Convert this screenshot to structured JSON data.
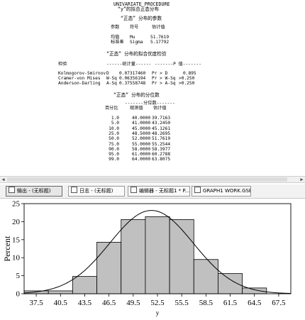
{
  "output": {
    "header_lines": [
      "UNIVARIATE PROCEDURE",
      "“y”的拟合正态分布"
    ],
    "param_section": {
      "title": "“正态” 分布的参数",
      "headers": [
        "参数",
        "符号",
        "估计值"
      ],
      "rows": [
        [
          "均值",
          "Mu",
          "51.7619"
        ],
        [
          "标准差",
          "Sigma",
          "5.17792"
        ]
      ]
    },
    "gof_section": {
      "title": "“正态” 分布的拟合优度检验",
      "headers": [
        "检验",
        "------统计量------",
        "-------P 值-------"
      ],
      "rows": [
        [
          "Kolmogorov-Smirnov",
          "D",
          "0.07317460",
          "Pr > D",
          "0.895"
        ],
        [
          "Cramer-von Mises",
          "W-Sq",
          "0.06356194",
          "Pr > W-Sq",
          ">0.250"
        ],
        [
          "Anderson-Darling",
          "A-Sq",
          "0.37558748",
          "Pr > A-Sq",
          ">0.250"
        ]
      ]
    },
    "quantile_section": {
      "title": "“正态” 分布的分位数",
      "group_header": "-------分位数-------",
      "headers": [
        "百分比",
        "观测值",
        "估计值"
      ],
      "rows": [
        [
          "1.0",
          "40.0000",
          "39.7163"
        ],
        [
          "5.0",
          "41.0000",
          "43.2450"
        ],
        [
          "10.0",
          "45.0000",
          "45.1261"
        ],
        [
          "25.0",
          "48.5000",
          "48.2695"
        ],
        [
          "50.0",
          "52.0000",
          "51.7619"
        ],
        [
          "75.0",
          "55.0000",
          "55.2544"
        ],
        [
          "90.0",
          "58.0000",
          "58.3977"
        ],
        [
          "95.0",
          "61.0000",
          "60.2788"
        ],
        [
          "99.0",
          "64.0000",
          "63.8075"
        ]
      ]
    }
  },
  "taskbar": {
    "items": [
      {
        "label": "输出 - (无标题)",
        "active": true
      },
      {
        "label": "日志 - (无标题)",
        "active": false
      },
      {
        "label": "编辑器 - 无标题1 * P...",
        "active": false
      },
      {
        "label": "GRAPH1 WORK.GSE...",
        "active": false
      }
    ]
  },
  "chart_data": {
    "type": "bar",
    "categories": [
      "37.5",
      "40.5",
      "43.5",
      "46.5",
      "49.5",
      "52.5",
      "55.5",
      "58.5",
      "61.5",
      "64.5",
      "67.5"
    ],
    "values": [
      0.8,
      0.8,
      4.8,
      14.3,
      20.6,
      21.4,
      20.6,
      9.5,
      5.6,
      1.6,
      0
    ],
    "fit_curve": {
      "distribution": "normal",
      "mu": 51.7619,
      "sigma": 5.17792
    },
    "bin_width": 3,
    "xlabel": "y",
    "ylabel": "Percent",
    "ylim": [
      0,
      25
    ],
    "yticks": [
      0,
      5,
      10,
      15,
      20,
      25
    ],
    "bar_color": "#c0c0c0",
    "grid": false
  }
}
